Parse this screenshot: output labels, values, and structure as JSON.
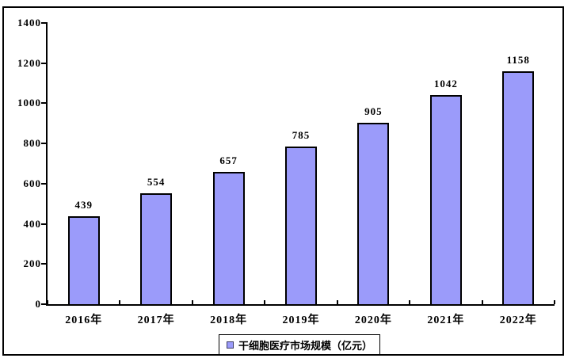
{
  "chart_data": {
    "type": "bar",
    "title": "",
    "categories": [
      "2016年",
      "2017年",
      "2018年",
      "2019年",
      "2020年",
      "2021年",
      "2022年"
    ],
    "values": [
      439,
      554,
      657,
      785,
      905,
      1042,
      1158
    ],
    "series": [
      {
        "name": "干细胞医疗市场规模（亿元）",
        "values": [
          439,
          554,
          657,
          785,
          905,
          1042,
          1158
        ]
      }
    ],
    "xlabel": "",
    "ylabel": "",
    "ylim": [
      0,
      1400
    ],
    "ytick_interval": 200,
    "yticks": [
      0,
      200,
      400,
      600,
      800,
      1000,
      1200,
      1400
    ],
    "grid": false,
    "data_labels_shown": true,
    "legend_position": "bottom-center",
    "colors": {
      "bar_fill": "#9B9BFA",
      "bar_border": "#000000",
      "axis": "#000000",
      "frame_border": "#000000",
      "background": "#FFFFFF",
      "text": "#000000"
    }
  },
  "legend": {
    "label": "干细胞医疗市场规模（亿元）"
  }
}
